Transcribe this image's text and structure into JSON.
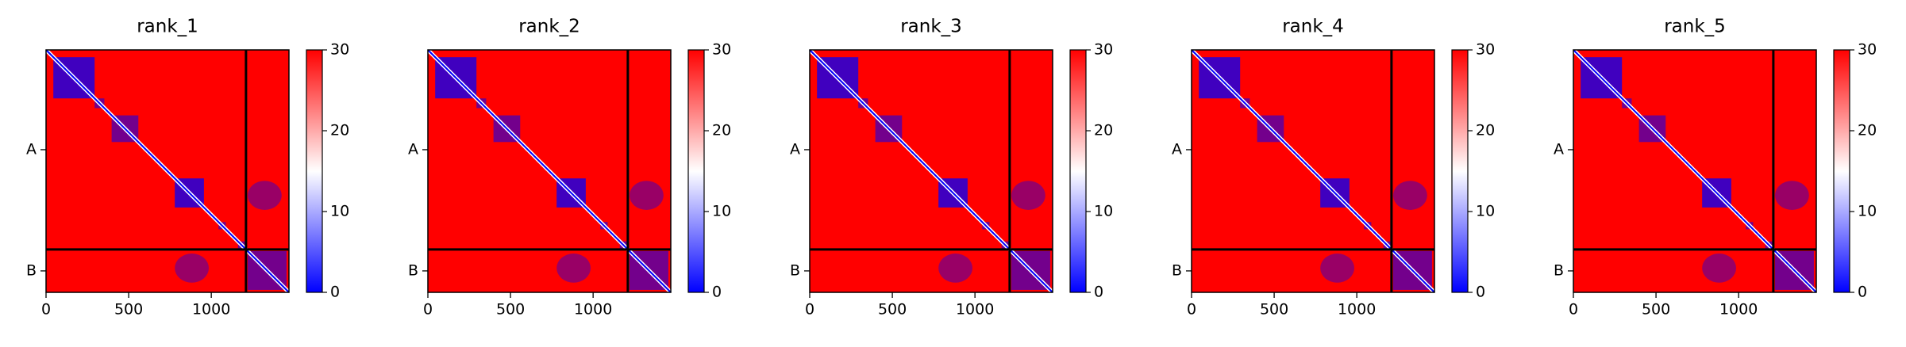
{
  "chart_data": [
    {
      "type": "heatmap",
      "title": "rank_1",
      "xlim": [
        0,
        1470
      ],
      "xticks": [
        0,
        500,
        1000
      ],
      "ylim": [
        1470,
        0
      ],
      "yticks": [
        {
          "value": 605,
          "label": "A"
        },
        {
          "value": 1340,
          "label": "B"
        }
      ],
      "chain_breaks": [
        1210
      ],
      "colorbar": {
        "lim": [
          0,
          30
        ],
        "ticks": [
          0,
          10,
          20,
          30
        ],
        "colors": [
          "#0000ff",
          "#ffffff",
          "#ff0000"
        ]
      }
    },
    {
      "type": "heatmap",
      "title": "rank_2",
      "xlim": [
        0,
        1470
      ],
      "xticks": [
        0,
        500,
        1000
      ],
      "ylim": [
        1470,
        0
      ],
      "yticks": [
        {
          "value": 605,
          "label": "A"
        },
        {
          "value": 1340,
          "label": "B"
        }
      ],
      "chain_breaks": [
        1210
      ],
      "colorbar": {
        "lim": [
          0,
          30
        ],
        "ticks": [
          0,
          10,
          20,
          30
        ],
        "colors": [
          "#0000ff",
          "#ffffff",
          "#ff0000"
        ]
      }
    },
    {
      "type": "heatmap",
      "title": "rank_3",
      "xlim": [
        0,
        1470
      ],
      "xticks": [
        0,
        500,
        1000
      ],
      "ylim": [
        1470,
        0
      ],
      "yticks": [
        {
          "value": 605,
          "label": "A"
        },
        {
          "value": 1340,
          "label": "B"
        }
      ],
      "chain_breaks": [
        1210
      ],
      "colorbar": {
        "lim": [
          0,
          30
        ],
        "ticks": [
          0,
          10,
          20,
          30
        ],
        "colors": [
          "#0000ff",
          "#ffffff",
          "#ff0000"
        ]
      }
    },
    {
      "type": "heatmap",
      "title": "rank_4",
      "xlim": [
        0,
        1470
      ],
      "xticks": [
        0,
        500,
        1000
      ],
      "ylim": [
        1470,
        0
      ],
      "yticks": [
        {
          "value": 605,
          "label": "A"
        },
        {
          "value": 1340,
          "label": "B"
        }
      ],
      "chain_breaks": [
        1210
      ],
      "colorbar": {
        "lim": [
          0,
          30
        ],
        "ticks": [
          0,
          10,
          20,
          30
        ],
        "colors": [
          "#0000ff",
          "#ffffff",
          "#ff0000"
        ]
      }
    },
    {
      "type": "heatmap",
      "title": "rank_5",
      "xlim": [
        0,
        1470
      ],
      "xticks": [
        0,
        500,
        1000
      ],
      "ylim": [
        1470,
        0
      ],
      "yticks": [
        {
          "value": 605,
          "label": "A"
        },
        {
          "value": 1340,
          "label": "B"
        }
      ],
      "chain_breaks": [
        1210
      ],
      "colorbar": {
        "lim": [
          0,
          30
        ],
        "ticks": [
          0,
          10,
          20,
          30
        ],
        "colors": [
          "#0000ff",
          "#ffffff",
          "#ff0000"
        ]
      }
    }
  ]
}
